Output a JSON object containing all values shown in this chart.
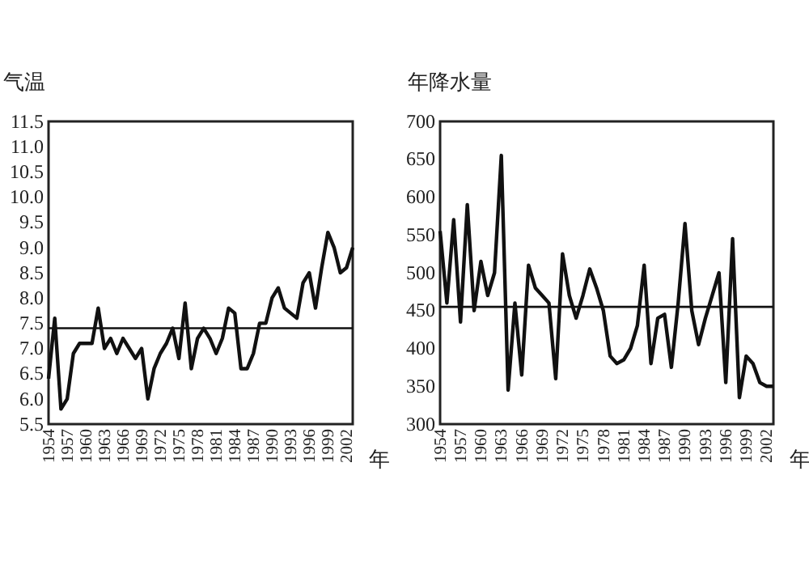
{
  "chart_data": [
    {
      "type": "line",
      "ylabel": "气温",
      "xlabel": "年",
      "x": [
        1954,
        1955,
        1956,
        1957,
        1958,
        1959,
        1960,
        1961,
        1962,
        1963,
        1964,
        1965,
        1966,
        1967,
        1968,
        1969,
        1970,
        1971,
        1972,
        1973,
        1974,
        1975,
        1976,
        1977,
        1978,
        1979,
        1980,
        1981,
        1982,
        1983,
        1984,
        1985,
        1986,
        1987,
        1988,
        1989,
        1990,
        1991,
        1992,
        1993,
        1994,
        1995,
        1996,
        1997,
        1998,
        1999,
        2000,
        2001,
        2002,
        2003
      ],
      "series": [
        {
          "color": "#111111",
          "values": [
            6.4,
            7.6,
            5.8,
            6.0,
            6.9,
            7.1,
            7.1,
            7.1,
            7.8,
            7.0,
            7.2,
            6.9,
            7.2,
            7.0,
            6.8,
            7.0,
            6.0,
            6.6,
            6.9,
            7.1,
            7.4,
            6.8,
            7.9,
            6.6,
            7.2,
            7.4,
            7.2,
            6.9,
            7.2,
            7.8,
            7.7,
            6.6,
            6.6,
            6.9,
            7.5,
            7.5,
            8.0,
            8.2,
            7.8,
            7.7,
            7.6,
            8.3,
            8.5,
            7.8,
            8.6,
            9.3,
            9.0,
            8.5,
            8.6,
            9.0
          ]
        }
      ],
      "xlim": [
        1954,
        2003
      ],
      "xticks": [
        1954,
        1957,
        1960,
        1963,
        1966,
        1969,
        1972,
        1975,
        1978,
        1981,
        1984,
        1987,
        1990,
        1993,
        1996,
        1999,
        2002
      ],
      "ylim": [
        5.5,
        11.5
      ],
      "yticks": [
        {
          "value": 5.5,
          "label": "5.5"
        },
        {
          "value": 6,
          "label": "6.0"
        },
        {
          "value": 6.5,
          "label": "6.5"
        },
        {
          "value": 7,
          "label": "7.0"
        },
        {
          "value": 7.5,
          "label": "7.5"
        },
        {
          "value": 8,
          "label": "8.0"
        },
        {
          "value": 8.5,
          "label": "8.5"
        },
        {
          "value": 9,
          "label": "9.0"
        },
        {
          "value": 9.5,
          "label": "9.5"
        },
        {
          "value": 10,
          "label": "10.0"
        },
        {
          "value": 10.5,
          "label": "10.5"
        },
        {
          "value": 11,
          "label": "11.0"
        },
        {
          "value": 11.5,
          "label": "11.5"
        }
      ],
      "ref_lines": [
        {
          "axis": "y",
          "value": 7.4,
          "color": "#111111"
        }
      ],
      "grid": false,
      "marker": "none"
    },
    {
      "type": "line",
      "ylabel": "年降水量",
      "xlabel": "年",
      "x": [
        1954,
        1955,
        1956,
        1957,
        1958,
        1959,
        1960,
        1961,
        1962,
        1963,
        1964,
        1965,
        1966,
        1967,
        1968,
        1969,
        1970,
        1971,
        1972,
        1973,
        1974,
        1975,
        1976,
        1977,
        1978,
        1979,
        1980,
        1981,
        1982,
        1983,
        1984,
        1985,
        1986,
        1987,
        1988,
        1989,
        1990,
        1991,
        1992,
        1993,
        1994,
        1995,
        1996,
        1997,
        1998,
        1999,
        2000,
        2001,
        2002,
        2003
      ],
      "series": [
        {
          "color": "#111111",
          "values": [
            555,
            460,
            570,
            435,
            590,
            450,
            515,
            470,
            500,
            655,
            345,
            460,
            365,
            510,
            480,
            470,
            460,
            360,
            525,
            470,
            440,
            470,
            505,
            480,
            450,
            390,
            380,
            385,
            400,
            430,
            510,
            380,
            440,
            445,
            375,
            460,
            565,
            450,
            405,
            440,
            470,
            500,
            355,
            545,
            335,
            390,
            380,
            355,
            350,
            350
          ]
        }
      ],
      "xlim": [
        1954,
        2003
      ],
      "xticks": [
        1954,
        1957,
        1960,
        1963,
        1966,
        1969,
        1972,
        1975,
        1978,
        1981,
        1984,
        1987,
        1990,
        1993,
        1996,
        1999,
        2002
      ],
      "ylim": [
        300,
        700
      ],
      "yticks": [
        300,
        350,
        400,
        450,
        500,
        550,
        600,
        650,
        700
      ],
      "ref_lines": [
        {
          "axis": "y",
          "value": 455,
          "color": "#111111"
        }
      ],
      "grid": false,
      "marker": "none"
    }
  ]
}
